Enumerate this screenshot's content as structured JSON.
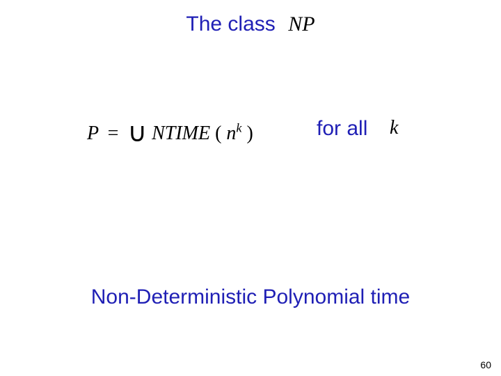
{
  "title": {
    "text": "The class",
    "math": "NP",
    "color": "#1f1fb5",
    "fontsize": 30,
    "math_fontsize": 30,
    "math_color": "#000000"
  },
  "equation": {
    "lhs": "P",
    "eq_sign": "=",
    "union": "∪",
    "ntime": "NTIME",
    "open_paren": "(",
    "arg_base": "n",
    "arg_exp": "k",
    "close_paren": ")",
    "fontsize": 28,
    "color": "#000000"
  },
  "forall": {
    "text": "for all",
    "color": "#1f1fb5",
    "fontsize": 30
  },
  "k": {
    "text": "k",
    "fontsize": 28,
    "color": "#000000"
  },
  "bottom": {
    "text": "Non-Deterministic Polynomial time",
    "color": "#1f1fb5",
    "fontsize": 30
  },
  "page_number": {
    "text": "60",
    "fontsize": 14,
    "color": "#000000"
  },
  "background_color": "#ffffff"
}
